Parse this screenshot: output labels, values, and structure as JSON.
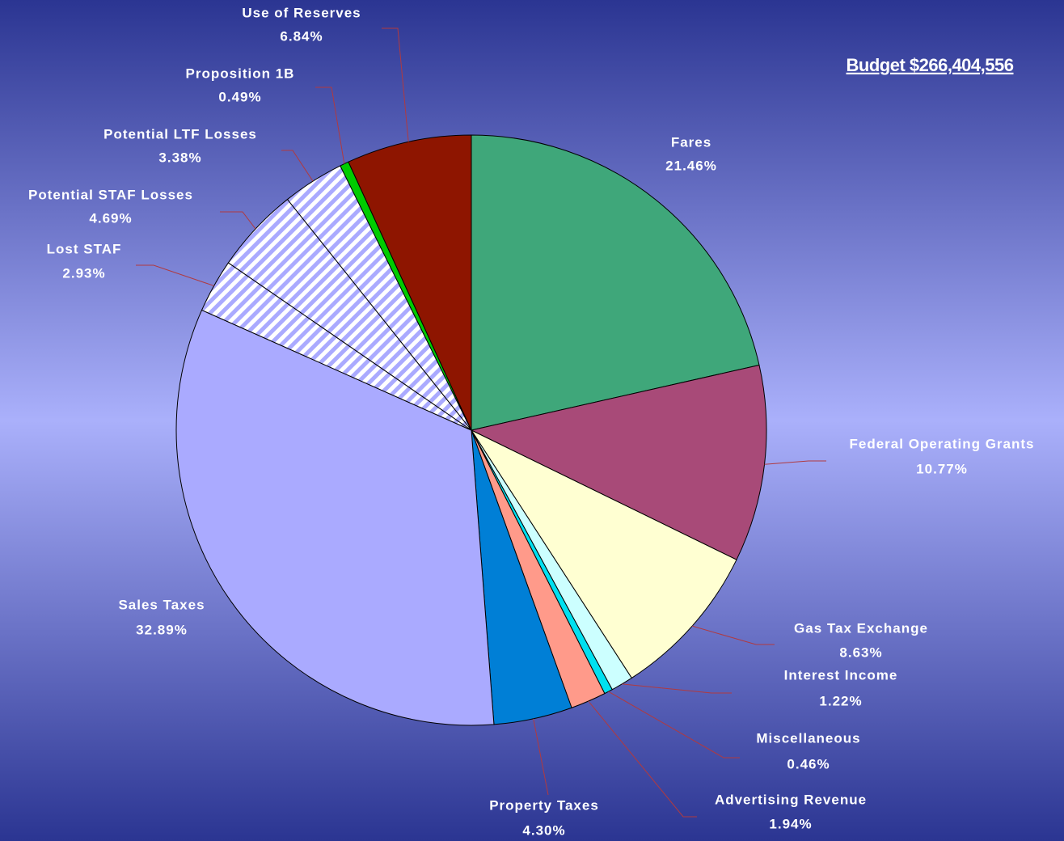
{
  "chart_data": {
    "type": "pie",
    "title": "Budget $266,404,556",
    "categories": [
      "Fares",
      "Federal Operating Grants",
      "Gas Tax Exchange",
      "Interest Income",
      "Miscellaneous",
      "Advertising Revenue",
      "Property Taxes",
      "Sales Taxes",
      "Lost STAF",
      "Potential STAF Losses",
      "Potential LTF Losses",
      "Proposition 1B",
      "Use of Reserves"
    ],
    "values": [
      21.46,
      10.77,
      8.63,
      1.22,
      0.46,
      1.94,
      4.3,
      32.89,
      2.93,
      4.69,
      3.38,
      0.49,
      6.84
    ],
    "value_labels": [
      "21.46%",
      "10.77%",
      "8.63%",
      "1.22%",
      "0.46%",
      "1.94%",
      "4.30%",
      "32.89%",
      "2.93%",
      "4.69%",
      "3.38%",
      "0.49%",
      "6.84%"
    ],
    "colors": [
      "#3fa77a",
      "#a84a78",
      "#ffffd2",
      "#ccffff",
      "#00e0f0",
      "#ff9a8a",
      "#007fd6",
      "#aaaaff",
      "#aaaaff",
      "#aaaaff",
      "#aaaaff",
      "#00cc00",
      "#8e1500"
    ],
    "hatched": [
      false,
      false,
      false,
      false,
      false,
      false,
      false,
      false,
      true,
      true,
      true,
      false,
      false
    ]
  }
}
